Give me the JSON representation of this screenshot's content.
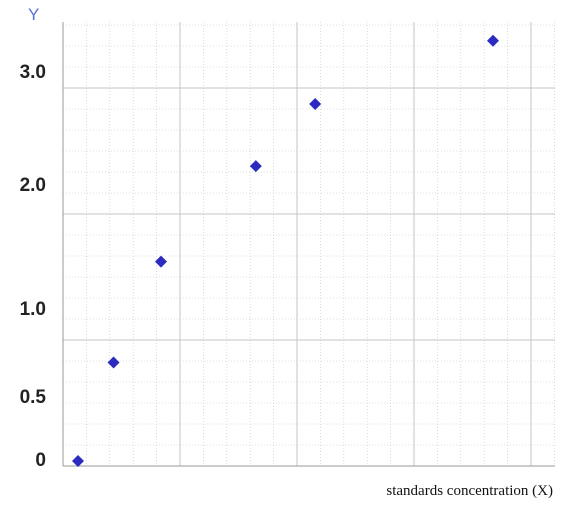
{
  "chart_data": {
    "type": "scatter",
    "title": "",
    "xlabel": "standards concentration (X)",
    "ylabel": "Y",
    "y_tick_labels": [
      "0",
      "0.5",
      "1.0",
      "2.0",
      "3.0"
    ],
    "marker": "diamond",
    "grid": true,
    "colors": {
      "marker": "#2b2bc0",
      "grid": "#c4c4c4",
      "axis": "#9a9a9a"
    },
    "series": [
      {
        "points": [
          {
            "x": 0.2,
            "y": 0.04
          },
          {
            "x": 0.8,
            "y": 0.73
          },
          {
            "x": 1.6,
            "y": 1.43
          },
          {
            "x": 3.2,
            "y": 2.22
          },
          {
            "x": 4.2,
            "y": 2.77
          },
          {
            "x": 7.2,
            "y": 3.33
          }
        ]
      }
    ]
  }
}
